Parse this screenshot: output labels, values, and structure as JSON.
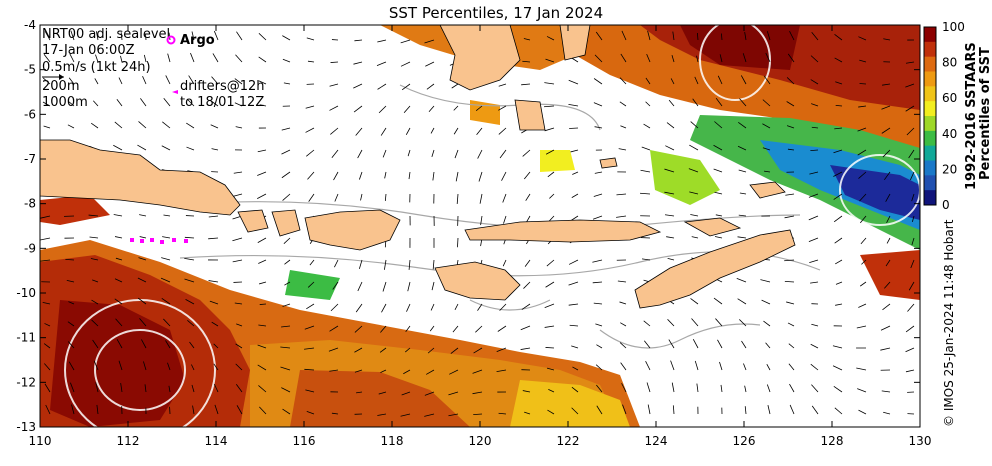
{
  "title": "SST Percentiles, 17 Jan 2024",
  "legend": {
    "product": "NRT00 adj. sealevel",
    "time": "17-Jan 06:00Z",
    "scale": "0.5m/s (1kt 24h)",
    "depth1": "200m",
    "depth2": "1000m",
    "argo": "Argo",
    "drifters": "drifters@12h",
    "drifters_to": "to 18/01 12Z"
  },
  "x_ticks": [
    "110",
    "112",
    "114",
    "116",
    "118",
    "120",
    "122",
    "124",
    "126",
    "128",
    "130"
  ],
  "y_ticks": [
    "-4",
    "-5",
    "-6",
    "-7",
    "-8",
    "-9",
    "-10",
    "-11",
    "-12",
    "-13"
  ],
  "colorbar": {
    "ticks": [
      "100",
      "80",
      "60",
      "40",
      "20",
      "0"
    ],
    "label1": "1992-2016 SSTAARS",
    "label2": "Percentiles of SST",
    "colors": [
      "#8b0000",
      "#c0300a",
      "#dd6a10",
      "#ee9a12",
      "#f0c418",
      "#f2ee20",
      "#9ed828",
      "#3cbc44",
      "#10a898",
      "#1a78c8",
      "#2050b0",
      "#10147a"
    ]
  },
  "credit": "© IMOS 25-Jan-2024 11:48 Hobart",
  "colors": {
    "land": "#f9c38e",
    "argo": "#ff00ff",
    "contour": "#a8a8a8"
  }
}
